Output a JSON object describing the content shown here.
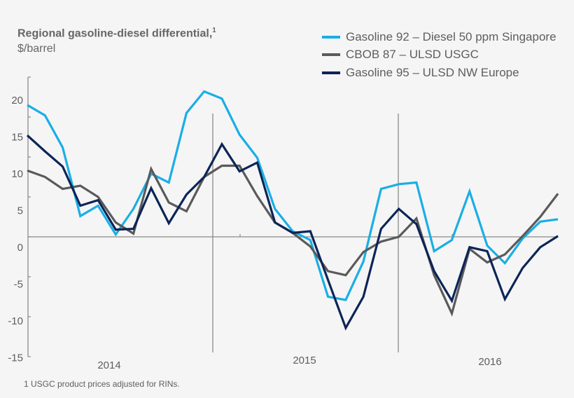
{
  "chart_data": {
    "type": "line",
    "title": "Regional gasoline-diesel differential,",
    "title_footnote_marker": "1",
    "ylabel": "$/barrel",
    "ylim": [
      -15,
      20
    ],
    "yticks": [
      20,
      15,
      10,
      5,
      0,
      -5,
      -10,
      -15
    ],
    "year_labels": [
      "2014",
      "2015",
      "2016"
    ],
    "grid": false,
    "legend_position": "top-right",
    "series": [
      {
        "name": "Gasoline 92 – Diesel 50 ppm Singapore",
        "color": "#1aaee6",
        "values": [
          16.5,
          15.2,
          11.2,
          2.6,
          3.9,
          0.3,
          3.5,
          7.9,
          6.8,
          15.5,
          18.2,
          17.3,
          12.8,
          9.9,
          3.5,
          0.7,
          -0.4,
          -7.5,
          -7.9,
          -3.1,
          6.0,
          6.6,
          6.8,
          -1.8,
          -0.4,
          5.7,
          -1.1,
          -3.3,
          -0.2,
          1.9,
          2.2
        ]
      },
      {
        "name": "CBOB 87 – ULSD USGC",
        "color": "#5a5a5a",
        "values": [
          8.3,
          7.5,
          6.0,
          6.4,
          5.0,
          1.8,
          0.4,
          8.5,
          4.3,
          3.2,
          7.5,
          8.9,
          8.9,
          5.1,
          1.8,
          0.5,
          -1.2,
          -4.3,
          -4.8,
          -1.9,
          -0.6,
          0.0,
          2.3,
          -4.8,
          -9.6,
          -1.5,
          -3.2,
          -2.2,
          0.1,
          2.5,
          5.4
        ]
      },
      {
        "name": "Gasoline 95 – ULSD NW Europe",
        "color": "#0c2557",
        "values": [
          12.7,
          10.7,
          8.8,
          3.9,
          4.6,
          0.9,
          1.0,
          6.1,
          1.7,
          5.3,
          7.5,
          11.6,
          8.2,
          9.3,
          1.8,
          0.5,
          0.7,
          -5.4,
          -11.4,
          -7.5,
          1.0,
          3.5,
          1.6,
          -4.3,
          -8.0,
          -1.3,
          -1.8,
          -7.8,
          -3.9,
          -1.3,
          0.1
        ]
      }
    ],
    "footnote": "1 USGC product prices adjusted for RINs."
  }
}
